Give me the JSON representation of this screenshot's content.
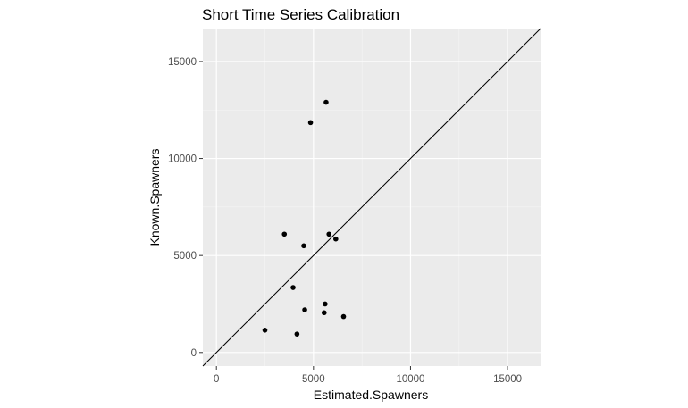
{
  "chart_data": {
    "type": "scatter",
    "title": "Short Time Series Calibration",
    "xlabel": "Estimated.Spawners",
    "ylabel": "Known.Spawners",
    "xlim": [
      -700,
      16700
    ],
    "ylim": [
      -700,
      16700
    ],
    "x_ticks": [
      0,
      5000,
      10000,
      15000
    ],
    "y_ticks": [
      0,
      5000,
      10000,
      15000
    ],
    "x_tick_labels": [
      "0",
      "5000",
      "10000",
      "15000"
    ],
    "y_tick_labels": [
      "0",
      "5000",
      "10000",
      "15000"
    ],
    "grid": true,
    "reference_line": "y = x",
    "points": [
      {
        "x": 2500,
        "y": 1150
      },
      {
        "x": 3500,
        "y": 6100
      },
      {
        "x": 3950,
        "y": 3350
      },
      {
        "x": 4150,
        "y": 950
      },
      {
        "x": 4500,
        "y": 5500
      },
      {
        "x": 4550,
        "y": 2200
      },
      {
        "x": 4850,
        "y": 11850
      },
      {
        "x": 5550,
        "y": 2050
      },
      {
        "x": 5600,
        "y": 2500
      },
      {
        "x": 5650,
        "y": 12900
      },
      {
        "x": 5800,
        "y": 6100
      },
      {
        "x": 6150,
        "y": 5850
      },
      {
        "x": 6550,
        "y": 1850
      }
    ],
    "colors": {
      "panel_background": "#ebebeb",
      "grid_major": "#ffffff",
      "grid_minor": "#f5f5f5",
      "point": "#000000",
      "reference_line": "#000000",
      "tick_label": "#4d4d4d"
    }
  }
}
